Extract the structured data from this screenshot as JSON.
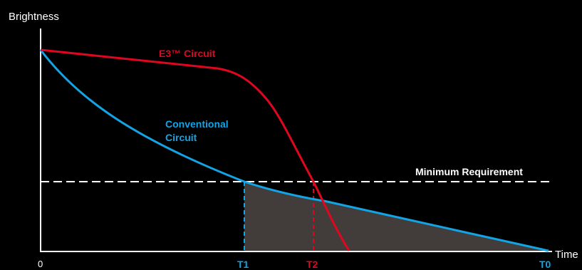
{
  "axes": {
    "y_label": "Brightness",
    "x_label": "Time",
    "origin_label": "0"
  },
  "curves": {
    "e3": {
      "label": "E3™ Circuit",
      "color": "#e0061f"
    },
    "conventional": {
      "label_line1": "Conventional",
      "label_line2": "Circuit",
      "color": "#13a4e6"
    }
  },
  "threshold": {
    "label": "Minimum Requirement",
    "color": "#ffffff"
  },
  "markers": {
    "t1": {
      "label": "T1",
      "color": "#13a4e6"
    },
    "t2": {
      "label": "T2",
      "color": "#e0061f"
    },
    "t0": {
      "label": "T0",
      "color": "#13a4e6"
    }
  },
  "shaded_area_color": "#423d3b"
}
